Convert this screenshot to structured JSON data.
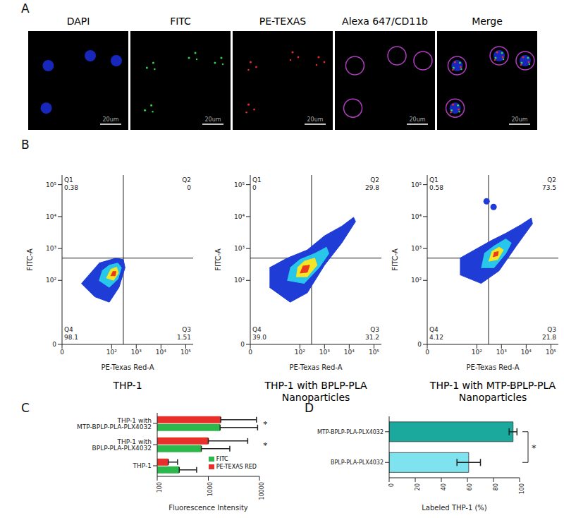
{
  "panel_labels": [
    "A",
    "B",
    "C",
    "D"
  ],
  "images": {
    "channels": [
      "DAPI",
      "FITC",
      "PE-TEXAS",
      "Alexa 647/CD11b",
      "Merge"
    ],
    "scale_bar": "20um"
  },
  "chart_data": [
    {
      "type": "scatter",
      "title": "THP-1",
      "xlabel": "PE-Texas Red-A",
      "ylabel": "FITC-A",
      "log": true,
      "xlim": [
        0,
        200000
      ],
      "ylim": [
        0,
        200000
      ],
      "xticks": [
        0,
        {
          "value": 100,
          "label": "10²"
        },
        {
          "value": 1000,
          "label": "10³"
        },
        {
          "value": 10000,
          "label": "10⁴"
        },
        {
          "value": 100000,
          "label": "10⁵"
        }
      ],
      "yticks": [
        0,
        {
          "value": 100,
          "label": "10²"
        },
        {
          "value": 1000,
          "label": "10³"
        },
        {
          "value": 10000,
          "label": "10⁴"
        },
        {
          "value": 100000,
          "label": "10⁵"
        }
      ],
      "gates": {
        "x": 300,
        "y": 500
      },
      "quadrants": [
        {
          "name": "Q1",
          "value": 0.38
        },
        {
          "name": "Q2",
          "value": 0
        },
        {
          "name": "Q3",
          "value": 1.51
        },
        {
          "name": "Q4",
          "value": 98.1
        }
      ],
      "colors": [
        "#1f3dd6",
        "#27c6ea",
        "#f4e526",
        "#ea3a1c"
      ],
      "contours": [
        [
          [
            5,
            80
          ],
          [
            20,
            30
          ],
          [
            80,
            20
          ],
          [
            200,
            60
          ],
          [
            350,
            250
          ],
          [
            300,
            450
          ],
          [
            150,
            500
          ],
          [
            30,
            350
          ]
        ],
        [
          [
            30,
            100
          ],
          [
            80,
            60
          ],
          [
            180,
            110
          ],
          [
            250,
            250
          ],
          [
            180,
            350
          ],
          [
            80,
            300
          ],
          [
            40,
            200
          ]
        ],
        [
          [
            60,
            120
          ],
          [
            120,
            100
          ],
          [
            190,
            170
          ],
          [
            160,
            260
          ],
          [
            90,
            220
          ]
        ],
        [
          [
            90,
            140
          ],
          [
            140,
            140
          ],
          [
            150,
            190
          ],
          [
            110,
            190
          ]
        ]
      ]
    },
    {
      "type": "scatter",
      "title": "THP-1 with BPLP-PLA Nanoparticles",
      "xlabel": "PE-Texas Red-A",
      "ylabel": "FITC-A",
      "log": true,
      "xlim": [
        0,
        200000
      ],
      "ylim": [
        0,
        200000
      ],
      "xticks": [
        0,
        {
          "value": 100,
          "label": "10²"
        },
        {
          "value": 1000,
          "label": "10³"
        },
        {
          "value": 10000,
          "label": "10⁴"
        },
        {
          "value": 100000,
          "label": "10⁵"
        }
      ],
      "yticks": [
        0,
        {
          "value": 100,
          "label": "10²"
        },
        {
          "value": 1000,
          "label": "10³"
        },
        {
          "value": 10000,
          "label": "10⁴"
        },
        {
          "value": 100000,
          "label": "10⁵"
        }
      ],
      "gates": {
        "x": 300,
        "y": 500
      },
      "quadrants": [
        {
          "name": "Q1",
          "value": 0
        },
        {
          "name": "Q2",
          "value": 29.8
        },
        {
          "name": "Q3",
          "value": 31.2
        },
        {
          "name": "Q4",
          "value": 39,
          "label": "39.0"
        }
      ],
      "colors": [
        "#1f3dd6",
        "#27c6ea",
        "#f4e526",
        "#ea3a1c"
      ],
      "contours": [
        [
          [
            5,
            60
          ],
          [
            40,
            20
          ],
          [
            200,
            40
          ],
          [
            1000,
            300
          ],
          [
            5000,
            1500
          ],
          [
            18000,
            7000
          ],
          [
            15000,
            9500
          ],
          [
            5000,
            5000
          ],
          [
            1000,
            2500
          ],
          [
            200,
            900
          ],
          [
            30,
            500
          ],
          [
            5,
            250
          ]
        ],
        [
          [
            30,
            100
          ],
          [
            150,
            80
          ],
          [
            600,
            250
          ],
          [
            1500,
            700
          ],
          [
            1200,
            1100
          ],
          [
            400,
            700
          ],
          [
            100,
            450
          ],
          [
            40,
            250
          ]
        ],
        [
          [
            70,
            130
          ],
          [
            200,
            130
          ],
          [
            500,
            300
          ],
          [
            400,
            500
          ],
          [
            150,
            400
          ],
          [
            80,
            250
          ]
        ],
        [
          [
            100,
            170
          ],
          [
            200,
            180
          ],
          [
            250,
            300
          ],
          [
            130,
            280
          ]
        ]
      ]
    },
    {
      "type": "scatter",
      "title": "THP-1 with MTP-BPLP-PLA Nanoparticles",
      "xlabel": "PE-Texas Red-A",
      "ylabel": "FITC-A",
      "log": true,
      "xlim": [
        0,
        200000
      ],
      "ylim": [
        0,
        200000
      ],
      "xticks": [
        0,
        {
          "value": 100,
          "label": "10²"
        },
        {
          "value": 1000,
          "label": "10³"
        },
        {
          "value": 10000,
          "label": "10⁴"
        },
        {
          "value": 100000,
          "label": "10⁵"
        }
      ],
      "yticks": [
        0,
        {
          "value": 100,
          "label": "10²"
        },
        {
          "value": 1000,
          "label": "10³"
        },
        {
          "value": 10000,
          "label": "10⁴"
        },
        {
          "value": 100000,
          "label": "10⁵"
        }
      ],
      "gates": {
        "x": 300,
        "y": 500
      },
      "quadrants": [
        {
          "name": "Q1",
          "value": 0.58
        },
        {
          "name": "Q2",
          "value": 73.5
        },
        {
          "name": "Q3",
          "value": 21.8
        },
        {
          "name": "Q4",
          "value": 4.12
        }
      ],
      "colors": [
        "#1f3dd6",
        "#27c6ea",
        "#f4e526",
        "#ea3a1c"
      ],
      "contours": [
        [
          [
            20,
            150
          ],
          [
            150,
            80
          ],
          [
            800,
            200
          ],
          [
            4000,
            1200
          ],
          [
            18000,
            6000
          ],
          [
            16000,
            9000
          ],
          [
            6000,
            5500
          ],
          [
            1500,
            3000
          ],
          [
            400,
            1800
          ],
          [
            80,
            900
          ],
          [
            20,
            500
          ]
        ],
        [
          [
            150,
            250
          ],
          [
            500,
            250
          ],
          [
            1500,
            700
          ],
          [
            2500,
            1500
          ],
          [
            1500,
            2000
          ],
          [
            500,
            1200
          ],
          [
            200,
            700
          ]
        ],
        [
          [
            300,
            400
          ],
          [
            700,
            450
          ],
          [
            1200,
            900
          ],
          [
            800,
            1100
          ],
          [
            400,
            800
          ]
        ],
        [
          [
            450,
            550
          ],
          [
            700,
            600
          ],
          [
            750,
            800
          ],
          [
            500,
            750
          ]
        ]
      ],
      "points": [
        [
          250,
          30000
        ],
        [
          480,
          20000
        ]
      ]
    },
    {
      "type": "bar",
      "orientation": "horizontal",
      "log": "x",
      "xlabel": "Fluorescence Intensity",
      "categories": [
        "THP-1 with MTP-BPLP-PLA-PLX4032",
        "THP-1 with BPLP-PLA-PLX4032",
        "THP-1"
      ],
      "series": [
        {
          "name": "FITC",
          "color": "#2db84c",
          "values": [
            1700,
            730,
            270
          ],
          "errors": [
            7500,
            1900,
            320
          ]
        },
        {
          "name": "PE-TEXAS RED",
          "color": "#e8302a",
          "values": [
            1750,
            1000,
            165
          ],
          "errors": [
            7000,
            4900,
            85
          ]
        }
      ],
      "xlim": [
        100,
        10000
      ],
      "xticks": [
        100,
        1000,
        10000
      ],
      "legend": "lower right",
      "annotations": [
        {
          "text": "*",
          "category": "THP-1 with MTP-BPLP-PLA-PLX4032"
        },
        {
          "text": "*",
          "category": "THP-1 with BPLP-PLA-PLX4032"
        }
      ]
    },
    {
      "type": "bar",
      "orientation": "horizontal",
      "xlabel": "Labeled THP-1 (%)",
      "categories": [
        "MTP-BPLP-PLA-PLX4032",
        "BPLP-PLA-PLX4032"
      ],
      "values": [
        95,
        61
      ],
      "errors": [
        3,
        9
      ],
      "colors": [
        "#1aa99c",
        "#7fe3ef"
      ],
      "xlim": [
        0,
        100
      ],
      "xticks": [
        0,
        20,
        40,
        60,
        80,
        100
      ],
      "annotations": [
        {
          "text": "*"
        }
      ]
    }
  ]
}
